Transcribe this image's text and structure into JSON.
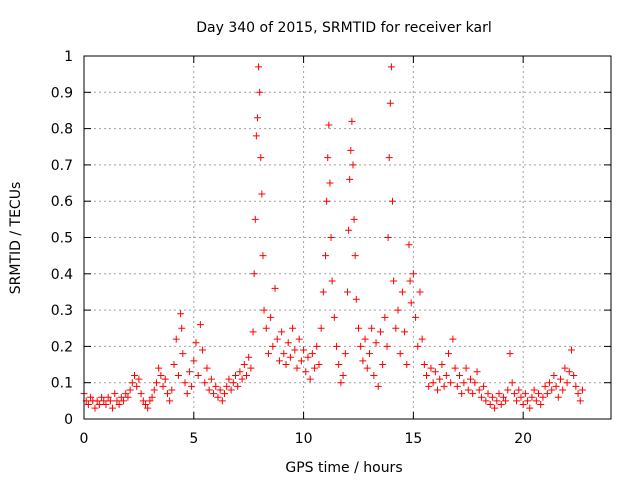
{
  "chart_data": {
    "type": "scatter",
    "title": "Day 340 of 2015, SRMTID for receiver karl",
    "xlabel": "GPS time / hours",
    "ylabel": "SRMTID / TECUs",
    "xlim": [
      0,
      24
    ],
    "ylim": [
      0,
      1
    ],
    "xticks": [
      0,
      5,
      10,
      15,
      20
    ],
    "xtick_labels": [
      "0",
      "5",
      "10",
      "15",
      "20"
    ],
    "yticks": [
      0,
      0.1,
      0.2,
      0.3,
      0.4,
      0.5,
      0.6,
      0.7,
      0.8,
      0.9,
      1
    ],
    "ytick_labels": [
      "0",
      "0.1",
      "0.2",
      "0.3",
      "0.4",
      "0.5",
      "0.6",
      "0.7",
      "0.8",
      "0.9",
      "1"
    ],
    "grid": true,
    "marker": "plus",
    "color": "#ff0000",
    "series": [
      {
        "name": "SRMTID",
        "points": [
          [
            0.0,
            0.07
          ],
          [
            0.1,
            0.05
          ],
          [
            0.2,
            0.04
          ],
          [
            0.3,
            0.06
          ],
          [
            0.4,
            0.05
          ],
          [
            0.5,
            0.03
          ],
          [
            0.6,
            0.05
          ],
          [
            0.7,
            0.04
          ],
          [
            0.8,
            0.06
          ],
          [
            0.9,
            0.05
          ],
          [
            1.0,
            0.04
          ],
          [
            1.1,
            0.06
          ],
          [
            1.2,
            0.05
          ],
          [
            1.3,
            0.03
          ],
          [
            1.4,
            0.07
          ],
          [
            1.5,
            0.05
          ],
          [
            1.6,
            0.04
          ],
          [
            1.7,
            0.06
          ],
          [
            1.8,
            0.05
          ],
          [
            1.9,
            0.07
          ],
          [
            2.0,
            0.06
          ],
          [
            2.1,
            0.08
          ],
          [
            2.2,
            0.1
          ],
          [
            2.3,
            0.12
          ],
          [
            2.4,
            0.09
          ],
          [
            2.5,
            0.11
          ],
          [
            2.6,
            0.07
          ],
          [
            2.7,
            0.05
          ],
          [
            2.8,
            0.04
          ],
          [
            2.9,
            0.03
          ],
          [
            3.0,
            0.05
          ],
          [
            3.1,
            0.06
          ],
          [
            3.2,
            0.08
          ],
          [
            3.3,
            0.1
          ],
          [
            3.4,
            0.14
          ],
          [
            3.5,
            0.12
          ],
          [
            3.6,
            0.09
          ],
          [
            3.7,
            0.11
          ],
          [
            3.8,
            0.07
          ],
          [
            3.9,
            0.05
          ],
          [
            4.0,
            0.08
          ],
          [
            4.1,
            0.15
          ],
          [
            4.2,
            0.22
          ],
          [
            4.3,
            0.12
          ],
          [
            4.4,
            0.29
          ],
          [
            4.45,
            0.25
          ],
          [
            4.5,
            0.18
          ],
          [
            4.6,
            0.1
          ],
          [
            4.7,
            0.07
          ],
          [
            4.8,
            0.13
          ],
          [
            4.9,
            0.09
          ],
          [
            5.0,
            0.16
          ],
          [
            5.1,
            0.21
          ],
          [
            5.2,
            0.12
          ],
          [
            5.3,
            0.26
          ],
          [
            5.4,
            0.19
          ],
          [
            5.5,
            0.1
          ],
          [
            5.6,
            0.14
          ],
          [
            5.7,
            0.08
          ],
          [
            5.8,
            0.11
          ],
          [
            5.9,
            0.07
          ],
          [
            6.0,
            0.09
          ],
          [
            6.1,
            0.06
          ],
          [
            6.2,
            0.08
          ],
          [
            6.3,
            0.05
          ],
          [
            6.4,
            0.07
          ],
          [
            6.5,
            0.09
          ],
          [
            6.6,
            0.11
          ],
          [
            6.7,
            0.08
          ],
          [
            6.8,
            0.1
          ],
          [
            6.9,
            0.12
          ],
          [
            7.0,
            0.09
          ],
          [
            7.1,
            0.13
          ],
          [
            7.2,
            0.11
          ],
          [
            7.3,
            0.15
          ],
          [
            7.4,
            0.12
          ],
          [
            7.5,
            0.17
          ],
          [
            7.6,
            0.14
          ],
          [
            7.7,
            0.24
          ],
          [
            7.75,
            0.4
          ],
          [
            7.8,
            0.55
          ],
          [
            7.85,
            0.78
          ],
          [
            7.9,
            0.83
          ],
          [
            7.95,
            0.97
          ],
          [
            8.0,
            0.9
          ],
          [
            8.05,
            0.72
          ],
          [
            8.1,
            0.62
          ],
          [
            8.15,
            0.45
          ],
          [
            8.2,
            0.3
          ],
          [
            8.3,
            0.25
          ],
          [
            8.4,
            0.18
          ],
          [
            8.5,
            0.28
          ],
          [
            8.6,
            0.2
          ],
          [
            8.7,
            0.36
          ],
          [
            8.8,
            0.22
          ],
          [
            8.9,
            0.16
          ],
          [
            9.0,
            0.24
          ],
          [
            9.1,
            0.18
          ],
          [
            9.2,
            0.15
          ],
          [
            9.3,
            0.21
          ],
          [
            9.4,
            0.17
          ],
          [
            9.5,
            0.25
          ],
          [
            9.6,
            0.19
          ],
          [
            9.7,
            0.14
          ],
          [
            9.8,
            0.22
          ],
          [
            9.9,
            0.16
          ],
          [
            10.0,
            0.19
          ],
          [
            10.1,
            0.13
          ],
          [
            10.2,
            0.17
          ],
          [
            10.3,
            0.11
          ],
          [
            10.4,
            0.18
          ],
          [
            10.5,
            0.14
          ],
          [
            10.6,
            0.2
          ],
          [
            10.7,
            0.15
          ],
          [
            10.8,
            0.25
          ],
          [
            10.9,
            0.35
          ],
          [
            11.0,
            0.45
          ],
          [
            11.05,
            0.6
          ],
          [
            11.1,
            0.72
          ],
          [
            11.15,
            0.81
          ],
          [
            11.2,
            0.65
          ],
          [
            11.25,
            0.5
          ],
          [
            11.3,
            0.38
          ],
          [
            11.4,
            0.28
          ],
          [
            11.5,
            0.2
          ],
          [
            11.6,
            0.15
          ],
          [
            11.7,
            0.1
          ],
          [
            11.8,
            0.12
          ],
          [
            11.9,
            0.18
          ],
          [
            12.0,
            0.35
          ],
          [
            12.05,
            0.52
          ],
          [
            12.1,
            0.66
          ],
          [
            12.15,
            0.74
          ],
          [
            12.2,
            0.82
          ],
          [
            12.25,
            0.7
          ],
          [
            12.3,
            0.55
          ],
          [
            12.35,
            0.45
          ],
          [
            12.4,
            0.33
          ],
          [
            12.5,
            0.25
          ],
          [
            12.6,
            0.2
          ],
          [
            12.7,
            0.16
          ],
          [
            12.8,
            0.22
          ],
          [
            12.9,
            0.14
          ],
          [
            13.0,
            0.18
          ],
          [
            13.1,
            0.25
          ],
          [
            13.2,
            0.12
          ],
          [
            13.3,
            0.21
          ],
          [
            13.4,
            0.09
          ],
          [
            13.5,
            0.24
          ],
          [
            13.6,
            0.15
          ],
          [
            13.7,
            0.28
          ],
          [
            13.8,
            0.2
          ],
          [
            13.85,
            0.5
          ],
          [
            13.9,
            0.72
          ],
          [
            13.95,
            0.87
          ],
          [
            14.0,
            0.97
          ],
          [
            14.05,
            0.6
          ],
          [
            14.1,
            0.38
          ],
          [
            14.2,
            0.25
          ],
          [
            14.3,
            0.3
          ],
          [
            14.4,
            0.18
          ],
          [
            14.5,
            0.35
          ],
          [
            14.6,
            0.24
          ],
          [
            14.7,
            0.15
          ],
          [
            14.8,
            0.48
          ],
          [
            14.85,
            0.38
          ],
          [
            14.9,
            0.32
          ],
          [
            15.0,
            0.4
          ],
          [
            15.1,
            0.28
          ],
          [
            15.2,
            0.2
          ],
          [
            15.3,
            0.35
          ],
          [
            15.4,
            0.22
          ],
          [
            15.5,
            0.15
          ],
          [
            15.6,
            0.12
          ],
          [
            15.7,
            0.09
          ],
          [
            15.8,
            0.14
          ],
          [
            15.9,
            0.1
          ],
          [
            16.0,
            0.13
          ],
          [
            16.1,
            0.08
          ],
          [
            16.2,
            0.11
          ],
          [
            16.3,
            0.15
          ],
          [
            16.4,
            0.09
          ],
          [
            16.5,
            0.12
          ],
          [
            16.6,
            0.18
          ],
          [
            16.7,
            0.1
          ],
          [
            16.8,
            0.22
          ],
          [
            16.9,
            0.14
          ],
          [
            17.0,
            0.09
          ],
          [
            17.1,
            0.12
          ],
          [
            17.2,
            0.07
          ],
          [
            17.3,
            0.1
          ],
          [
            17.4,
            0.14
          ],
          [
            17.5,
            0.08
          ],
          [
            17.6,
            0.11
          ],
          [
            17.7,
            0.07
          ],
          [
            17.8,
            0.1
          ],
          [
            17.9,
            0.13
          ],
          [
            18.0,
            0.08
          ],
          [
            18.1,
            0.06
          ],
          [
            18.2,
            0.09
          ],
          [
            18.3,
            0.05
          ],
          [
            18.4,
            0.07
          ],
          [
            18.5,
            0.04
          ],
          [
            18.6,
            0.06
          ],
          [
            18.7,
            0.03
          ],
          [
            18.8,
            0.05
          ],
          [
            18.9,
            0.07
          ],
          [
            19.0,
            0.04
          ],
          [
            19.1,
            0.06
          ],
          [
            19.2,
            0.05
          ],
          [
            19.3,
            0.08
          ],
          [
            19.4,
            0.18
          ],
          [
            19.5,
            0.1
          ],
          [
            19.6,
            0.07
          ],
          [
            19.7,
            0.05
          ],
          [
            19.8,
            0.08
          ],
          [
            19.9,
            0.06
          ],
          [
            20.0,
            0.04
          ],
          [
            20.1,
            0.07
          ],
          [
            20.2,
            0.05
          ],
          [
            20.3,
            0.03
          ],
          [
            20.4,
            0.06
          ],
          [
            20.5,
            0.08
          ],
          [
            20.6,
            0.05
          ],
          [
            20.7,
            0.07
          ],
          [
            20.8,
            0.04
          ],
          [
            20.9,
            0.06
          ],
          [
            21.0,
            0.09
          ],
          [
            21.1,
            0.07
          ],
          [
            21.2,
            0.1
          ],
          [
            21.3,
            0.08
          ],
          [
            21.4,
            0.12
          ],
          [
            21.5,
            0.09
          ],
          [
            21.6,
            0.06
          ],
          [
            21.7,
            0.11
          ],
          [
            21.8,
            0.08
          ],
          [
            21.9,
            0.14
          ],
          [
            22.0,
            0.1
          ],
          [
            22.1,
            0.13
          ],
          [
            22.2,
            0.19
          ],
          [
            22.3,
            0.12
          ],
          [
            22.4,
            0.09
          ],
          [
            22.5,
            0.07
          ],
          [
            22.6,
            0.05
          ],
          [
            22.7,
            0.08
          ]
        ]
      }
    ]
  }
}
